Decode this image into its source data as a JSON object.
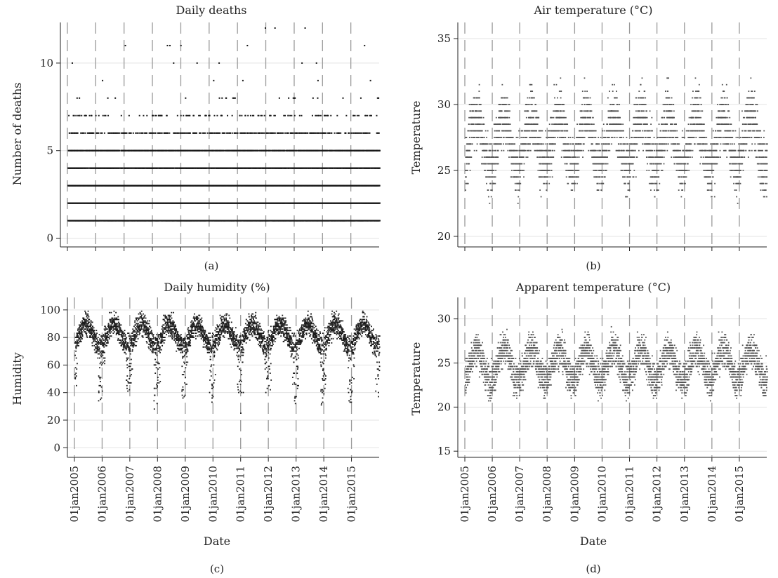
{
  "figure": {
    "panels": [
      {
        "id": "a",
        "tag": "(a)",
        "title": "Daily deaths",
        "xlabel": "",
        "ylabel": "Number of deaths"
      },
      {
        "id": "b",
        "tag": "(b)",
        "title": "Air temperature (°C)",
        "xlabel": "",
        "ylabel": "Temperature"
      },
      {
        "id": "c",
        "tag": "(c)",
        "title": "Daily humidity (%)",
        "xlabel": "Date",
        "ylabel": "Humidity"
      },
      {
        "id": "d",
        "tag": "(d)",
        "title": "Apparent temperature (°C)",
        "xlabel": "Date",
        "ylabel": "Temperature"
      }
    ]
  },
  "chart_data": [
    {
      "id": "a",
      "type": "scatter",
      "title": "Daily deaths",
      "ylabel": "Number of deaths",
      "xlabel": "",
      "x_range": [
        "2005-01-01",
        "2015-12-31"
      ],
      "ylim": [
        -0.5,
        12
      ],
      "yticks": [
        0,
        5,
        10
      ],
      "xticks": [],
      "year_markers": [
        "2005-01-01",
        "2006-01-01",
        "2007-01-01",
        "2008-01-01",
        "2009-01-01",
        "2010-01-01",
        "2011-01-01",
        "2012-01-01",
        "2013-01-01",
        "2014-01-01",
        "2015-01-01"
      ],
      "grid": "horizontal",
      "series": [
        {
          "kind": "discrete_counts",
          "levels": [
            {
              "y": 1,
              "density": 0.85
            },
            {
              "y": 2,
              "density": 0.97
            },
            {
              "y": 3,
              "density": 0.93
            },
            {
              "y": 4,
              "density": 0.6
            },
            {
              "y": 5,
              "density": 0.48
            },
            {
              "y": 6,
              "density": 0.2
            },
            {
              "y": 7,
              "density": 0.05
            },
            {
              "y": 8,
              "density": 0.015
            },
            {
              "y": 9,
              "density": 0.004
            },
            {
              "y": 10,
              "density": 0.002
            },
            {
              "y": 11,
              "density": 0.001
            },
            {
              "y": 12,
              "density": 0.001
            }
          ]
        }
      ]
    },
    {
      "id": "b",
      "type": "scatter",
      "title": "Air temperature (°C)",
      "ylabel": "Temperature",
      "xlabel": "",
      "x_range": [
        "2005-01-01",
        "2015-12-31"
      ],
      "ylim": [
        19.2,
        35.8
      ],
      "yticks": [
        20,
        25,
        30,
        35
      ],
      "xticks": [],
      "year_markers": [
        "2005-01-01",
        "2006-01-01",
        "2007-01-01",
        "2008-01-01",
        "2009-01-01",
        "2010-01-01",
        "2011-01-01",
        "2012-01-01",
        "2013-01-01",
        "2014-01-01",
        "2015-01-01"
      ],
      "grid": "horizontal",
      "series": [
        {
          "kind": "seasonal_daily",
          "mean": 27.2,
          "amplitude": 2.0,
          "noise": 1.6,
          "min": 21.0,
          "max": 34.0,
          "step": 0.5
        }
      ]
    },
    {
      "id": "c",
      "type": "scatter",
      "title": "Daily humidity (%)",
      "ylabel": "Humidity",
      "xlabel": "Date",
      "x_range": [
        "2005-01-01",
        "2015-12-31"
      ],
      "ylim": [
        -7,
        105
      ],
      "yticks": [
        0,
        20,
        40,
        60,
        80,
        100
      ],
      "xticks": [
        "01jan2005",
        "01jan2006",
        "01jan2007",
        "01jan2008",
        "01jan2009",
        "01jan2010",
        "01jan2011",
        "01jan2012",
        "01jan2013",
        "01jan2014",
        "01jan2015"
      ],
      "year_markers": [
        "2005-01-01",
        "2006-01-01",
        "2007-01-01",
        "2008-01-01",
        "2009-01-01",
        "2010-01-01",
        "2011-01-01",
        "2012-01-01",
        "2013-01-01",
        "2014-01-01",
        "2015-01-01"
      ],
      "grid": "horizontal",
      "series": [
        {
          "kind": "seasonal_daily",
          "mean": 82,
          "amplitude": 8,
          "noise": 6,
          "min": 6,
          "max": 99,
          "step": 1,
          "dry_season_dip": 40
        }
      ]
    },
    {
      "id": "d",
      "type": "scatter",
      "title": "Apparent temperature (°C)",
      "ylabel": "Temperature",
      "xlabel": "Date",
      "x_range": [
        "2005-01-01",
        "2015-12-31"
      ],
      "ylim": [
        14.3,
        31.8
      ],
      "yticks": [
        15,
        20,
        25,
        30
      ],
      "xticks": [
        "01jan2005",
        "01jan2006",
        "01jan2007",
        "01jan2008",
        "01jan2009",
        "01jan2010",
        "01jan2011",
        "01jan2012",
        "01jan2013",
        "01jan2014",
        "01jan2015"
      ],
      "year_markers": [
        "2005-01-01",
        "2006-01-01",
        "2007-01-01",
        "2008-01-01",
        "2009-01-01",
        "2010-01-01",
        "2011-01-01",
        "2012-01-01",
        "2013-01-01",
        "2014-01-01",
        "2015-01-01"
      ],
      "grid": "horizontal",
      "series": [
        {
          "kind": "seasonal_daily",
          "mean": 24.8,
          "amplitude": 1.8,
          "noise": 1.4,
          "min": 17.5,
          "max": 30.5,
          "step": 0.3
        }
      ]
    }
  ],
  "style": {
    "marker_color": "#1a1a1a",
    "marker_color_light": "#555555",
    "grid_color": "#e3e3e3",
    "marker_line_color": "#9a9a9a"
  }
}
